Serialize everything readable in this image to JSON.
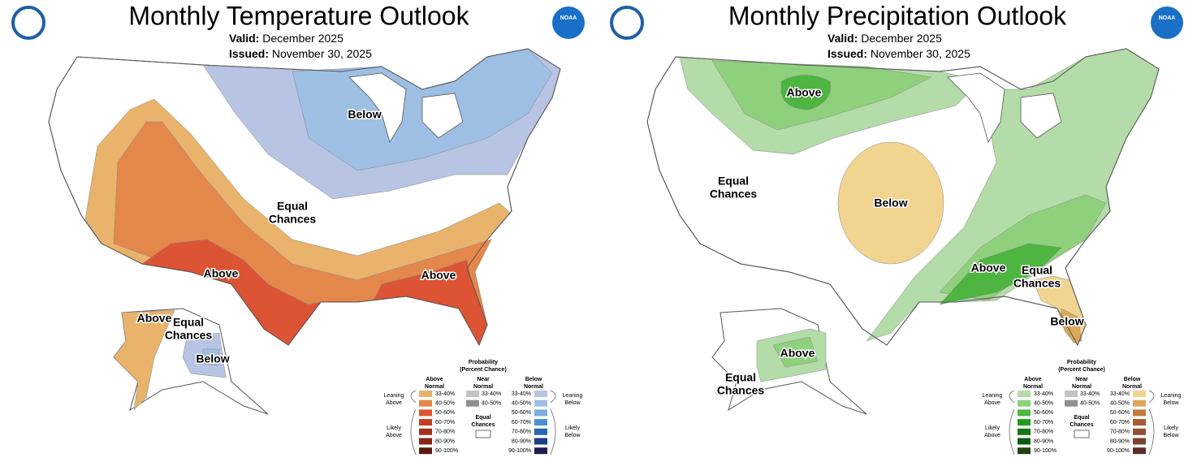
{
  "panels": [
    {
      "title": "Monthly Temperature Outlook",
      "valid_label": "Valid:",
      "valid": "December 2025",
      "issued_label": "Issued:",
      "issued": "November 30, 2025",
      "logo": "NOAA",
      "map_labels": [
        [
          "Below"
        ],
        [
          "Equal",
          "Chances"
        ],
        [
          "Above"
        ],
        [
          "Above"
        ],
        [
          "Above"
        ],
        [
          "Equal",
          "Chances"
        ],
        [
          "Below"
        ]
      ],
      "legend": {
        "title": [
          "Probability",
          "(Percent Chance)"
        ],
        "above_header": [
          "Above",
          "Normal"
        ],
        "near_header": [
          "Near",
          "Normal"
        ],
        "below_header": [
          "Below",
          "Normal"
        ],
        "bins": [
          "33-40%",
          "40-50%",
          "50-60%",
          "60-70%",
          "70-80%",
          "80-90%",
          "90-100%"
        ],
        "near_bins": [
          "33-40%",
          "40-50%"
        ],
        "above_colors": [
          "#e9b36b",
          "#e4874a",
          "#dc5433",
          "#c83a22",
          "#a5301a",
          "#862617",
          "#5c1a0e"
        ],
        "near_colors": [
          "#c4c4c4",
          "#8f8f8f"
        ],
        "below_colors": [
          "#b8c4e3",
          "#9dbfe3",
          "#7aaede",
          "#4c90d0",
          "#2566b0",
          "#1c3e86",
          "#1d1d54"
        ],
        "equal_chances": [
          "Equal",
          "Chances"
        ],
        "leaning_above": [
          "Leaning",
          "Above"
        ],
        "likely_above": [
          "Likely",
          "Above"
        ],
        "leaning_below": [
          "Leaning",
          "Below"
        ],
        "likely_below": [
          "Likely",
          "Below"
        ]
      }
    },
    {
      "title": "Monthly Precipitation Outlook",
      "valid_label": "Valid:",
      "valid": "December 2025",
      "issued_label": "Issued:",
      "issued": "November 30, 2025",
      "logo": "NOAA",
      "map_labels": [
        [
          "Above"
        ],
        [
          "Equal",
          "Chances"
        ],
        [
          "Below"
        ],
        [
          "Above"
        ],
        [
          "Equal",
          "Chances"
        ],
        [
          "Below"
        ],
        [
          "Above"
        ],
        [
          "Equal",
          "Chances"
        ]
      ],
      "legend": {
        "title": [
          "Probability",
          "(Percent Chance)"
        ],
        "above_header": [
          "Above",
          "Normal"
        ],
        "near_header": [
          "Near",
          "Normal"
        ],
        "below_header": [
          "Below",
          "Normal"
        ],
        "bins": [
          "33-40%",
          "40-50%",
          "50-60%",
          "60-70%",
          "70-80%",
          "80-90%",
          "90-100%"
        ],
        "near_bins": [
          "33-40%",
          "40-50%"
        ],
        "above_colors": [
          "#b3dca8",
          "#8fd07c",
          "#4db540",
          "#1e9b1c",
          "#137916",
          "#0d5c12",
          "#234214"
        ],
        "near_colors": [
          "#c4c4c4",
          "#8f8f8f"
        ],
        "below_colors": [
          "#f0d490",
          "#dba85a",
          "#c37a3e",
          "#a95a35",
          "#935036",
          "#7d4330",
          "#5a2d26"
        ],
        "equal_chances": [
          "Equal",
          "Chances"
        ],
        "leaning_above": [
          "Leaning",
          "Above"
        ],
        "likely_above": [
          "Likely",
          "Above"
        ],
        "leaning_below": [
          "Leaning",
          "Below"
        ],
        "likely_below": [
          "Likely",
          "Below"
        ]
      }
    }
  ]
}
